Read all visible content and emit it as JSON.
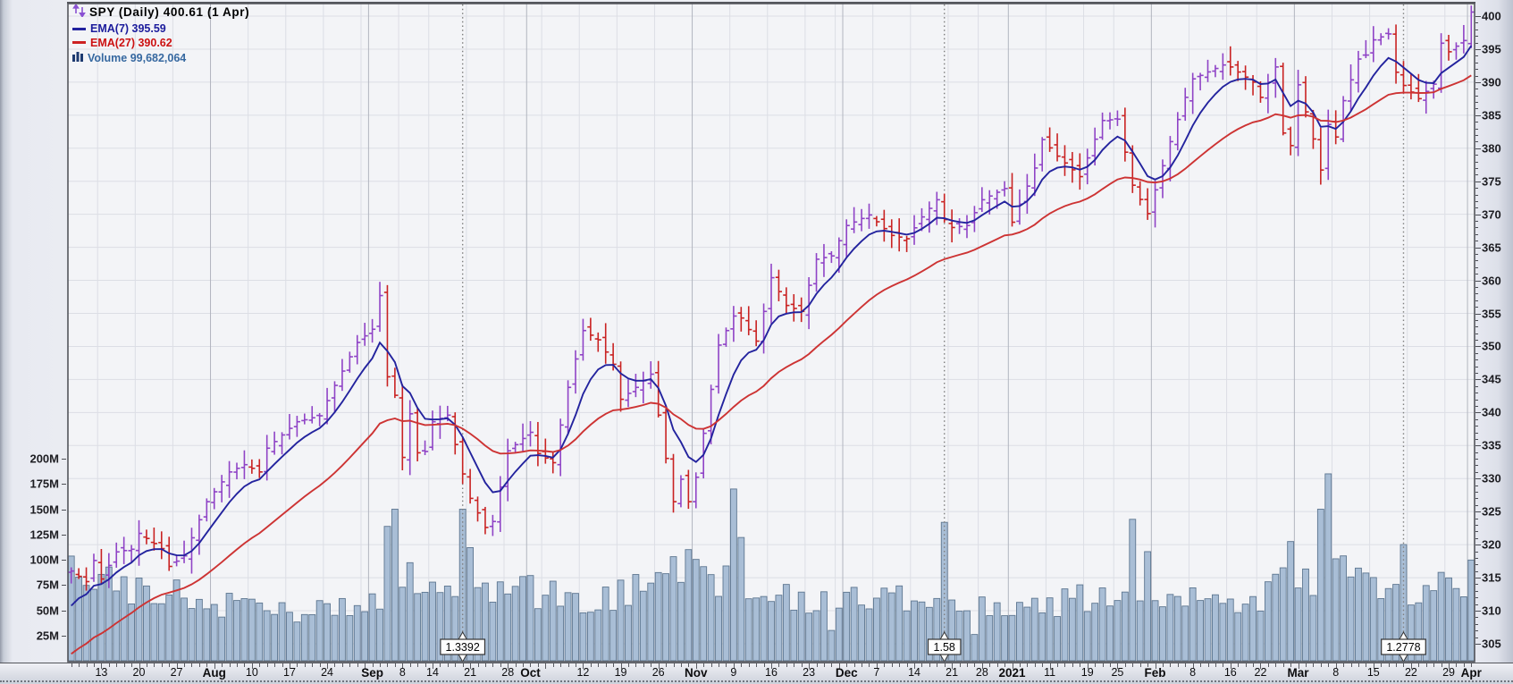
{
  "legend": {
    "title": "SPY (Daily) 400.61 (1 Apr)",
    "ema7": "EMA(7) 395.59",
    "ema27": "EMA(27) 390.62",
    "volume": "Volume 99,682,064"
  },
  "axes": {
    "price_tick_labels": [
      "400",
      "395",
      "390",
      "385",
      "380",
      "375",
      "370",
      "365",
      "360",
      "355",
      "350",
      "345",
      "340",
      "335",
      "330",
      "325",
      "320",
      "315",
      "310",
      "305"
    ],
    "volume_tick_labels": [
      "200M",
      "175M",
      "150M",
      "125M",
      "100M",
      "75M",
      "50M",
      "25M"
    ],
    "date_tick_labels": [
      "13",
      "20",
      "27",
      "Aug",
      "10",
      "17",
      "24",
      "Sep",
      "8",
      "14",
      "21",
      "28",
      "Oct",
      "12",
      "19",
      "26",
      "Nov",
      "9",
      "16",
      "23",
      "Dec",
      "7",
      "14",
      "21",
      "28",
      "2021",
      "11",
      "19",
      "25",
      "Feb",
      "8",
      "16",
      "22",
      "Mar",
      "8",
      "15",
      "22",
      "29",
      "Apr"
    ]
  },
  "chart_data": {
    "type": "ohlc",
    "symbol": "SPY",
    "period": "Daily",
    "title": "SPY (Daily) 400.61 (1 Apr)",
    "last": {
      "date": "2021-04-01",
      "close": 400.61,
      "volume": 99682064,
      "ema7": 395.59,
      "ema27": 390.62
    },
    "price_axis": {
      "min": 305,
      "max": 400,
      "step": 5
    },
    "volume_axis_millions": {
      "min": 25,
      "max": 200,
      "step": 25
    },
    "start_date": "2020-07-07",
    "end_date": "2021-04-01",
    "market_holidays": [
      "2020-09-07",
      "2020-11-26",
      "2020-12-25",
      "2021-01-01",
      "2021-01-18",
      "2021-02-15"
    ],
    "close_anchors": [
      [
        "2020-07-07",
        316.0
      ],
      [
        "2020-07-09",
        314.4
      ],
      [
        "2020-07-10",
        317.6
      ],
      [
        "2020-07-13",
        314.8
      ],
      [
        "2020-07-15",
        318.9
      ],
      [
        "2020-07-17",
        319.3
      ],
      [
        "2020-07-20",
        321.7
      ],
      [
        "2020-07-23",
        319.4
      ],
      [
        "2020-07-24",
        316.7
      ],
      [
        "2020-07-28",
        318.3
      ],
      [
        "2020-07-31",
        326.5
      ],
      [
        "2020-08-05",
        331.0
      ],
      [
        "2020-08-07",
        332.1
      ],
      [
        "2020-08-11",
        331.0
      ],
      [
        "2020-08-12",
        334.6
      ],
      [
        "2020-08-18",
        338.6
      ],
      [
        "2020-08-21",
        339.5
      ],
      [
        "2020-08-25",
        344.1
      ],
      [
        "2020-08-28",
        350.6
      ],
      [
        "2020-09-01",
        352.6
      ],
      [
        "2020-09-02",
        357.7
      ],
      [
        "2020-09-03",
        345.4
      ],
      [
        "2020-09-04",
        342.6
      ],
      [
        "2020-09-08",
        333.2
      ],
      [
        "2020-09-09",
        339.8
      ],
      [
        "2020-09-10",
        333.9
      ],
      [
        "2020-09-11",
        334.1
      ],
      [
        "2020-09-14",
        338.6
      ],
      [
        "2020-09-16",
        339.6
      ],
      [
        "2020-09-18",
        330.7
      ],
      [
        "2020-09-21",
        327.0
      ],
      [
        "2020-09-23",
        322.6
      ],
      [
        "2020-09-24",
        323.5
      ],
      [
        "2020-09-25",
        328.7
      ],
      [
        "2020-09-28",
        334.2
      ],
      [
        "2020-10-01",
        337.0
      ],
      [
        "2020-10-02",
        333.8
      ],
      [
        "2020-10-06",
        332.4
      ],
      [
        "2020-10-08",
        343.8
      ],
      [
        "2020-10-12",
        352.4
      ],
      [
        "2020-10-14",
        351.0
      ],
      [
        "2020-10-16",
        347.3
      ],
      [
        "2020-10-19",
        342.0
      ],
      [
        "2020-10-21",
        343.8
      ],
      [
        "2020-10-23",
        345.8
      ],
      [
        "2020-10-26",
        339.6
      ],
      [
        "2020-10-28",
        326.5
      ],
      [
        "2020-10-29",
        329.9
      ],
      [
        "2020-10-30",
        326.5
      ],
      [
        "2020-11-02",
        330.2
      ],
      [
        "2020-11-04",
        343.5
      ],
      [
        "2020-11-05",
        350.2
      ],
      [
        "2020-11-09",
        354.6
      ],
      [
        "2020-11-10",
        354.3
      ],
      [
        "2020-11-12",
        350.8
      ],
      [
        "2020-11-13",
        355.3
      ],
      [
        "2020-11-16",
        360.4
      ],
      [
        "2020-11-18",
        356.2
      ],
      [
        "2020-11-20",
        355.3
      ],
      [
        "2020-11-24",
        363.2
      ],
      [
        "2020-11-27",
        363.7
      ],
      [
        "2020-12-01",
        368.3
      ],
      [
        "2020-12-04",
        369.9
      ],
      [
        "2020-12-09",
        366.8
      ],
      [
        "2020-12-11",
        366.3
      ],
      [
        "2020-12-15",
        369.6
      ],
      [
        "2020-12-17",
        372.2
      ],
      [
        "2020-12-18",
        369.2
      ],
      [
        "2020-12-21",
        368.0
      ],
      [
        "2020-12-23",
        368.3
      ],
      [
        "2020-12-28",
        372.2
      ],
      [
        "2020-12-31",
        373.9
      ],
      [
        "2021-01-04",
        368.8
      ],
      [
        "2021-01-07",
        377.0
      ],
      [
        "2021-01-08",
        381.3
      ],
      [
        "2021-01-12",
        378.8
      ],
      [
        "2021-01-15",
        375.7
      ],
      [
        "2021-01-21",
        384.2
      ],
      [
        "2021-01-25",
        384.4
      ],
      [
        "2021-01-27",
        374.4
      ],
      [
        "2021-01-29",
        370.1
      ],
      [
        "2021-02-01",
        373.7
      ],
      [
        "2021-02-03",
        381.0
      ],
      [
        "2021-02-05",
        387.7
      ],
      [
        "2021-02-08",
        390.5
      ],
      [
        "2021-02-12",
        392.6
      ],
      [
        "2021-02-16",
        392.3
      ],
      [
        "2021-02-19",
        390.0
      ],
      [
        "2021-02-22",
        387.7
      ],
      [
        "2021-02-24",
        392.3
      ],
      [
        "2021-02-25",
        382.3
      ],
      [
        "2021-02-26",
        380.4
      ],
      [
        "2021-03-01",
        389.6
      ],
      [
        "2021-03-03",
        381.4
      ],
      [
        "2021-03-04",
        376.7
      ],
      [
        "2021-03-05",
        383.6
      ],
      [
        "2021-03-08",
        381.7
      ],
      [
        "2021-03-09",
        387.2
      ],
      [
        "2021-03-11",
        393.5
      ],
      [
        "2021-03-12",
        394.1
      ],
      [
        "2021-03-15",
        396.4
      ],
      [
        "2021-03-17",
        397.3
      ],
      [
        "2021-03-18",
        391.5
      ],
      [
        "2021-03-19",
        389.5
      ],
      [
        "2021-03-23",
        387.5
      ],
      [
        "2021-03-25",
        389.7
      ],
      [
        "2021-03-26",
        395.9
      ],
      [
        "2021-03-29",
        394.6
      ],
      [
        "2021-03-31",
        396.3
      ],
      [
        "2021-04-01",
        400.61
      ]
    ],
    "volume_base_anchors_m": [
      [
        "2020-07-07",
        85
      ],
      [
        "2020-07-20",
        70
      ],
      [
        "2020-08-03",
        58
      ],
      [
        "2020-08-17",
        46
      ],
      [
        "2020-08-31",
        52
      ],
      [
        "2020-09-08",
        90
      ],
      [
        "2020-09-15",
        75
      ],
      [
        "2020-09-30",
        70
      ],
      [
        "2020-10-12",
        58
      ],
      [
        "2020-10-26",
        72
      ],
      [
        "2020-11-02",
        82
      ],
      [
        "2020-11-13",
        72
      ],
      [
        "2020-11-23",
        62
      ],
      [
        "2020-12-07",
        56
      ],
      [
        "2020-12-14",
        62
      ],
      [
        "2020-12-31",
        49
      ],
      [
        "2021-01-11",
        55
      ],
      [
        "2021-01-25",
        68
      ],
      [
        "2021-02-08",
        62
      ],
      [
        "2021-02-16",
        55
      ],
      [
        "2021-02-24",
        68
      ],
      [
        "2021-03-08",
        92
      ],
      [
        "2021-03-15",
        72
      ],
      [
        "2021-03-24",
        68
      ],
      [
        "2021-03-31",
        78
      ],
      [
        "2021-04-01",
        99.682
      ]
    ],
    "volume_spikes_m": {
      "2020-09-03": 133,
      "2020-09-04": 150,
      "2020-09-18": 150,
      "2020-09-21": 112,
      "2020-10-28": 103,
      "2020-10-30": 110,
      "2020-11-09": 170,
      "2020-11-10": 122,
      "2020-11-27": 30,
      "2020-12-18": 137,
      "2020-12-24": 26,
      "2021-01-27": 140,
      "2021-01-29": 108,
      "2021-02-25": 92,
      "2021-02-26": 118,
      "2021-03-04": 150,
      "2021-03-05": 185,
      "2021-03-19": 115,
      "2021-04-01": 99.682
    },
    "ema_overlays": [
      {
        "period": 7,
        "seed": 309.0,
        "value": 395.59,
        "color": "#23239e"
      },
      {
        "period": 27,
        "seed": 302.5,
        "value": 390.62,
        "color": "#cd3333"
      }
    ],
    "annotations": [
      {
        "date": "2020-09-18",
        "label": "1.3392"
      },
      {
        "date": "2020-12-18",
        "label": "1.58"
      },
      {
        "date": "2021-03-19",
        "label": "1.2778"
      }
    ],
    "colors": {
      "up": "#8f43c6",
      "down": "#c92222",
      "ema7": "#23239e",
      "ema27": "#cd3333",
      "volume_fill": "#a9bed6",
      "volume_stroke": "#5d7690",
      "grid": "#dcdee5",
      "month_grid": "#b2b5bf",
      "plot_bg": "#f3f4f7",
      "border": "#54565c",
      "annotation_line": "#7f7f7f"
    }
  }
}
